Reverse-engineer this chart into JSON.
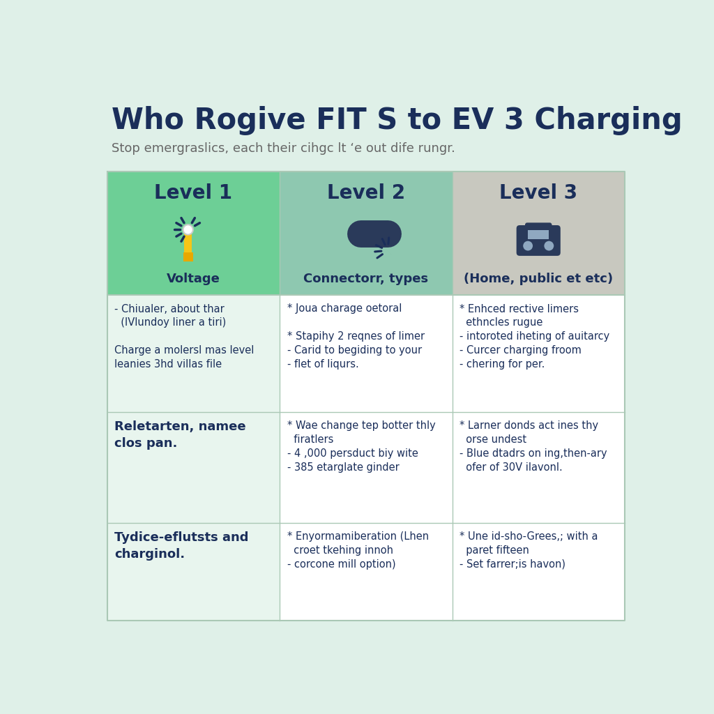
{
  "title": "Who Rogive FIT S to EV 3 Charging",
  "subtitle": "Stop emergraslics, each their cihgc lt ‘e out dife rungr.",
  "background_color": "#dff0e8",
  "header_colors": [
    "#6dcf96",
    "#8ec8b0",
    "#c8c8bf"
  ],
  "header_text_color": "#1a2e5a",
  "body_col1_bg": "#e8f5ee",
  "body_col23_bg": "#ffffff",
  "divider_color": "#aac8b5",
  "levels": [
    "Level 1",
    "Level 2",
    "Level 3"
  ],
  "icon_labels": [
    "Voltage",
    "Connectorr, types",
    "(Home, public et etc)"
  ],
  "col1_body": [
    "- Chiualer, about thar\n  (IVlundoy liner a tiri)\n\nCharge a molersl mas level\nleanies 3hd villas file",
    "Reletarten, namee\nclos pan.",
    "Tydice-eflutsts and\ncharginol."
  ],
  "col1_bold": [
    false,
    true,
    true
  ],
  "col2_body": [
    "* Joua charage oetoral\n\n* Stapihy 2 reqnes of limer\n- Carid to begiding to your\n- flet of liqurs.",
    "* Wae change tep botter thly\n  firatlers\n- 4 ,000 persduct biy wite\n- 385 etarglate ginder",
    "* Enyormamiberation (Lhen\n  croet tkehing innoh\n- corcone mill option)"
  ],
  "col3_body": [
    "* Enhced rective limers\n  ethncles rugue\n- intoroted iheting of auitarcy\n- Curcer charging froom\n- chering for per.",
    "* Larner donds act ines thy\n  orse undest\n- Blue dtadrs on ing,then-ary\n  ofer of 30V ilavonl.",
    "* Une id-sho-Grees,; with a\n  paret fifteen\n- Set farrer;is havon)"
  ],
  "title_fontsize": 30,
  "subtitle_fontsize": 13,
  "level_fontsize": 20,
  "icon_label_fontsize": 13,
  "body_fontsize": 10.5,
  "body_bold_fontsize": 13
}
